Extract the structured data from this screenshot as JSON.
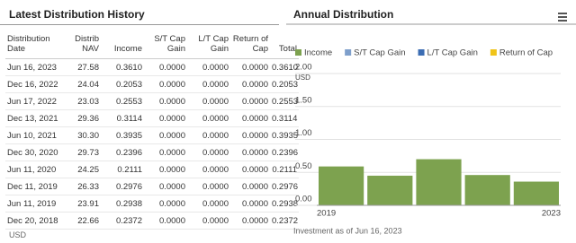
{
  "table": {
    "title": "Latest Distribution History",
    "columns": [
      "Distribution\nDate",
      "Distrib\nNAV",
      "Income",
      "S/T Cap\nGain",
      "L/T Cap\nGain",
      "Return of\nCap",
      "Total"
    ],
    "rows": [
      [
        "Jun 16, 2023",
        "27.58",
        "0.3610",
        "0.0000",
        "0.0000",
        "0.0000",
        "0.3610"
      ],
      [
        "Dec 16, 2022",
        "24.04",
        "0.2053",
        "0.0000",
        "0.0000",
        "0.0000",
        "0.2053"
      ],
      [
        "Jun 17, 2022",
        "23.03",
        "0.2553",
        "0.0000",
        "0.0000",
        "0.0000",
        "0.2553"
      ],
      [
        "Dec 13, 2021",
        "29.36",
        "0.3114",
        "0.0000",
        "0.0000",
        "0.0000",
        "0.3114"
      ],
      [
        "Jun 10, 2021",
        "30.30",
        "0.3935",
        "0.0000",
        "0.0000",
        "0.0000",
        "0.3935"
      ],
      [
        "Dec 30, 2020",
        "29.73",
        "0.2396",
        "0.0000",
        "0.0000",
        "0.0000",
        "0.2396"
      ],
      [
        "Jun 11, 2020",
        "24.25",
        "0.2111",
        "0.0000",
        "0.0000",
        "0.0000",
        "0.2111"
      ],
      [
        "Dec 11, 2019",
        "26.33",
        "0.2976",
        "0.0000",
        "0.0000",
        "0.0000",
        "0.2976"
      ],
      [
        "Jun 11, 2019",
        "23.91",
        "0.2938",
        "0.0000",
        "0.0000",
        "0.0000",
        "0.2938"
      ],
      [
        "Dec 20, 2018",
        "22.66",
        "0.2372",
        "0.0000",
        "0.0000",
        "0.0000",
        "0.2372"
      ]
    ],
    "currency": "USD"
  },
  "chart_data": {
    "type": "stacked-bar",
    "title": "Annual Distribution",
    "categories": [
      "2019",
      null,
      null,
      null,
      "2023"
    ],
    "series": [
      {
        "name": "Income",
        "color": "#7da24f",
        "values": [
          0.59,
          0.45,
          0.7,
          0.46,
          0.36
        ]
      },
      {
        "name": "S/T Cap Gain",
        "color": "#7e9fcb",
        "values": [
          0,
          0,
          0,
          0,
          0
        ]
      },
      {
        "name": "L/T Cap Gain",
        "color": "#3c6db3",
        "values": [
          0,
          0,
          0,
          0,
          0
        ]
      },
      {
        "name": "Return of Cap",
        "color": "#f0c419",
        "values": [
          0,
          0,
          0,
          0,
          0
        ]
      }
    ],
    "ylim": [
      0,
      2
    ],
    "yticks": [
      {
        "value": 0,
        "label": "0.00"
      },
      {
        "value": 0.5,
        "label": "0.50"
      },
      {
        "value": 1,
        "label": "1.00"
      },
      {
        "value": 1.5,
        "label": "1.50"
      },
      {
        "value": 2,
        "label": "2.00"
      }
    ],
    "y_unit": "USD",
    "grid": true,
    "footnote": "Investment as of Jun 16, 2023"
  }
}
